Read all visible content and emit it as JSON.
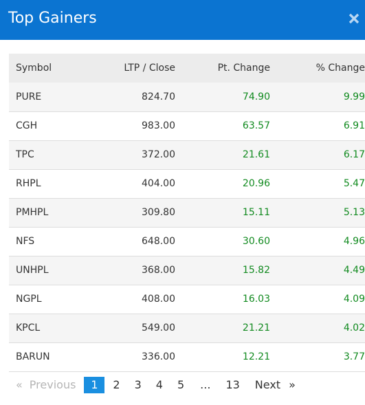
{
  "title": "Top Gainers",
  "close_icon": "close-icon",
  "colors": {
    "header_bg": "#0b74d1",
    "positive": "#118a1f",
    "active_page": "#1a8fe0"
  },
  "table": {
    "headers": [
      "Symbol",
      "LTP / Close",
      "Pt. Change",
      "% Change"
    ],
    "rows": [
      {
        "symbol": "PURE",
        "ltp": "824.70",
        "pt": "74.90",
        "pct": "9.99"
      },
      {
        "symbol": "CGH",
        "ltp": "983.00",
        "pt": "63.57",
        "pct": "6.91"
      },
      {
        "symbol": "TPC",
        "ltp": "372.00",
        "pt": "21.61",
        "pct": "6.17"
      },
      {
        "symbol": "RHPL",
        "ltp": "404.00",
        "pt": "20.96",
        "pct": "5.47"
      },
      {
        "symbol": "PMHPL",
        "ltp": "309.80",
        "pt": "15.11",
        "pct": "5.13"
      },
      {
        "symbol": "NFS",
        "ltp": "648.00",
        "pt": "30.60",
        "pct": "4.96"
      },
      {
        "symbol": "UNHPL",
        "ltp": "368.00",
        "pt": "15.82",
        "pct": "4.49"
      },
      {
        "symbol": "NGPL",
        "ltp": "408.00",
        "pt": "16.03",
        "pct": "4.09"
      },
      {
        "symbol": "KPCL",
        "ltp": "549.00",
        "pt": "21.21",
        "pct": "4.02"
      },
      {
        "symbol": "BARUN",
        "ltp": "336.00",
        "pt": "12.21",
        "pct": "3.77"
      }
    ]
  },
  "pagination": {
    "first": "«",
    "previous": "Previous",
    "pages": [
      "1",
      "2",
      "3",
      "4",
      "5"
    ],
    "ellipsis": "...",
    "last_page": "13",
    "next": "Next",
    "last": "»"
  }
}
